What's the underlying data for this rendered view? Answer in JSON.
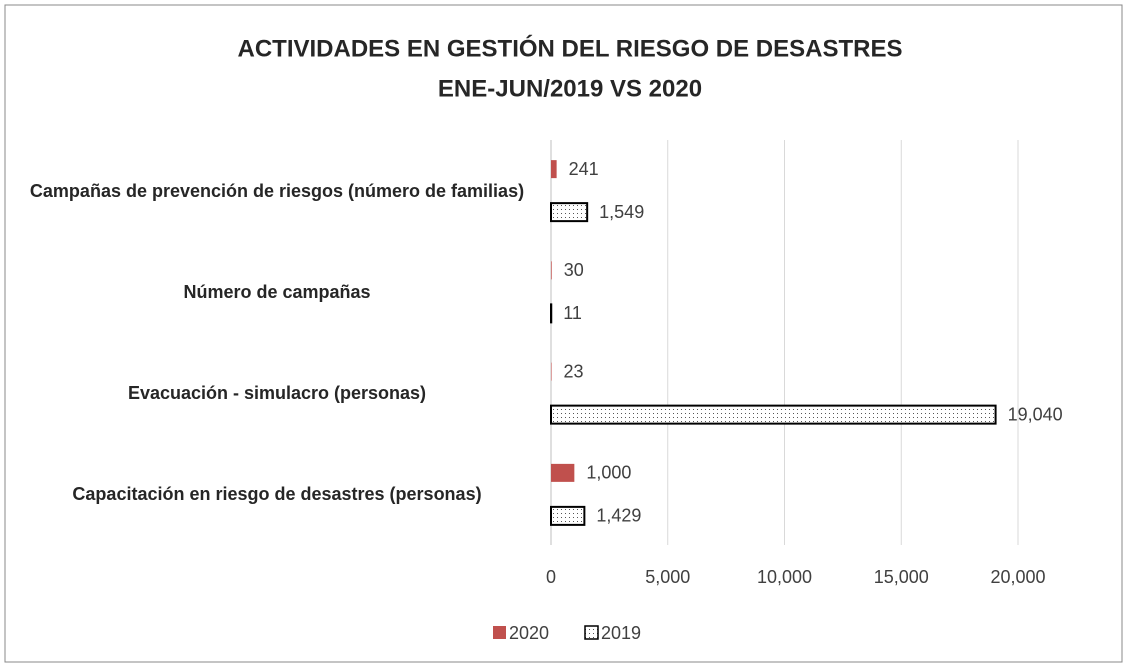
{
  "chart_data": {
    "type": "hbar",
    "title": [
      "ACTIVIDADES EN GESTIÓN DEL RIESGO DE DESASTRES",
      "ENE-JUN/2019 VS 2020"
    ],
    "categories": [
      "Campañas de prevención de riesgos (número de familias)",
      "Número de campañas",
      "Evacuación - simulacro (personas)",
      "Capacitación en riesgo de desastres (personas)"
    ],
    "series": [
      {
        "name": "2020",
        "color": "#c0504d",
        "values": [
          241,
          30,
          23,
          1000
        ],
        "value_labels": [
          "241",
          "30",
          "23",
          "1,000"
        ]
      },
      {
        "name": "2019",
        "color": "#000000",
        "pattern": "dots",
        "values": [
          1549,
          11,
          19040,
          1429
        ],
        "value_labels": [
          "1,549",
          "11",
          "19,040",
          "1,429"
        ]
      }
    ],
    "xlim": [
      0,
      20000
    ],
    "xticks": [
      0,
      {
        "value": 5000,
        "label": "5,000"
      },
      {
        "value": 10000,
        "label": "10,000"
      },
      {
        "value": 15000,
        "label": "15,000"
      },
      {
        "value": 20000,
        "label": "20,000"
      }
    ],
    "grid": true,
    "legend": "bottom"
  }
}
